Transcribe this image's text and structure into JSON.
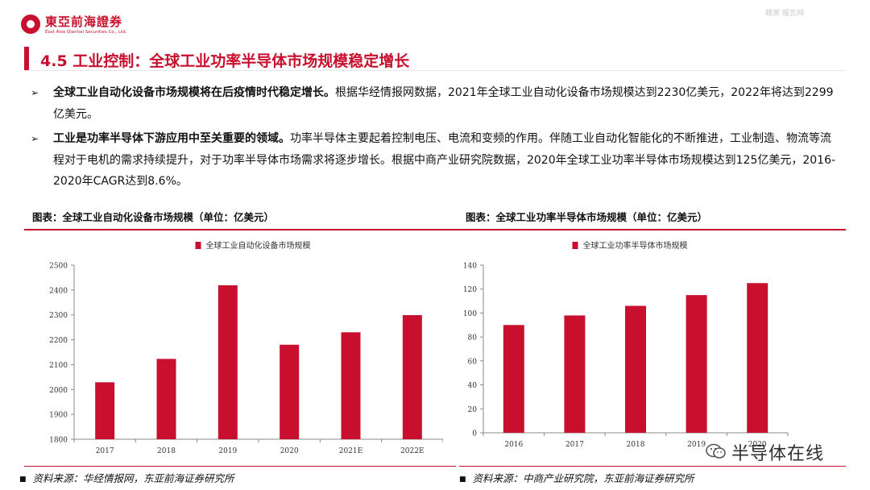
{
  "header": {
    "logo_name": "東亞前海證券",
    "logo_en": "East Asia Qianhai Securities Co., Ltd.",
    "watermark": "精英 报告网"
  },
  "title": "4.5 工业控制：全球工业功率半导体市场规模稳定增长",
  "bullets": [
    {
      "bold": "全球工业自动化设备市场规模将在后疫情时代稳定增长。",
      "text": "根据华经情报网数据，2021年全球工业自动化设备市场规模达到2230亿美元，2022年将达到2299亿美元。"
    },
    {
      "bold": "工业是功率半导体下游应用中至关重要的领域。",
      "text": "功率半导体主要起着控制电压、电流和变频的作用。伴随工业自动化智能化的不断推进，工业制造、物流等流程对于电机的需求持续提升，对于功率半导体市场需求将逐步增长。根据中商产业研究院数据，2020年全球工业功率半导体市场规模达到125亿美元，2016-2020年CAGR达到8.6%。"
    }
  ],
  "panels": {
    "left_title": "图表：全球工业自动化设备市场规模（单位：亿美元）",
    "right_title": "图表：全球工业功率半导体市场规模（单位：亿美元）",
    "left_source": "资料来源：华经情报网，东亚前海证券研究所",
    "right_source": "资料来源：中商产业研究院，东亚前海证券研究所"
  },
  "wechat_label": "半导体在线",
  "colors": {
    "accent": "#c8102e",
    "bar": "#c8102e"
  },
  "chart_data": [
    {
      "type": "bar",
      "categories": [
        "2017",
        "2018",
        "2019",
        "2020",
        "2021E",
        "2022E"
      ],
      "series": [
        {
          "name": "全球工业自动化设备市场规模",
          "values": [
            2029,
            2123,
            2419,
            2180,
            2230,
            2299
          ]
        }
      ],
      "ylim": [
        1800,
        2500
      ],
      "yticks": [
        1800,
        1900,
        2000,
        2100,
        2200,
        2300,
        2400,
        2500
      ],
      "legend": "top-center",
      "grid": false
    },
    {
      "type": "bar",
      "categories": [
        "2016",
        "2017",
        "2018",
        "2019",
        "2020"
      ],
      "series": [
        {
          "name": "全球工业功率半导体市场规模",
          "values": [
            90,
            98,
            106,
            115,
            125
          ]
        }
      ],
      "ylim": [
        0,
        140
      ],
      "yticks": [
        0,
        20,
        40,
        60,
        80,
        100,
        120,
        140
      ],
      "legend": "top-center",
      "grid": false
    }
  ]
}
